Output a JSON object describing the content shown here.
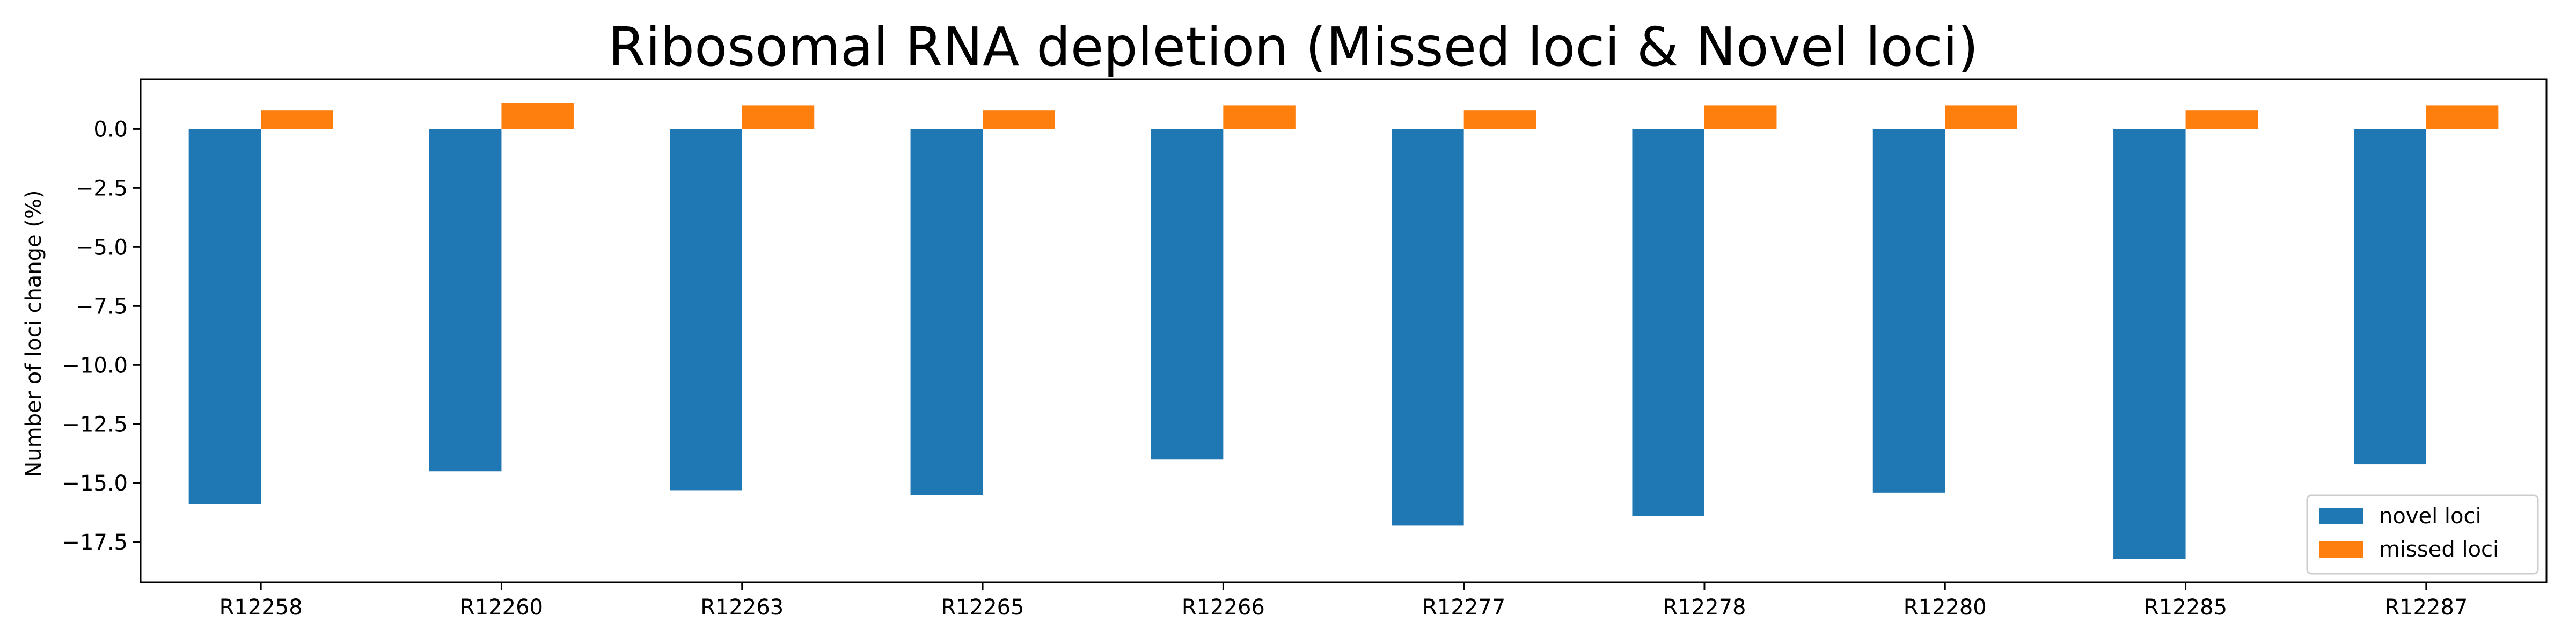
{
  "chart_data": {
    "type": "bar",
    "title": "Ribosomal RNA depletion (Missed loci & Novel loci)",
    "xlabel": "",
    "ylabel": "Number of loci change (%)",
    "categories": [
      "R12258",
      "R12260",
      "R12263",
      "R12265",
      "R12266",
      "R12277",
      "R12278",
      "R12280",
      "R12285",
      "R12287"
    ],
    "series": [
      {
        "name": "novel loci",
        "color": "#1f77b4",
        "values": [
          -15.9,
          -14.5,
          -15.3,
          -15.5,
          -14.0,
          -16.8,
          -16.4,
          -15.4,
          -18.2,
          -14.2
        ]
      },
      {
        "name": "missed loci",
        "color": "#ff7f0e",
        "values": [
          0.8,
          1.1,
          1.0,
          0.8,
          1.0,
          0.8,
          1.0,
          1.0,
          0.8,
          1.0
        ]
      }
    ],
    "yticks": [
      "0.0",
      "−2.5",
      "−5.0",
      "−7.5",
      "−10.0",
      "−12.5",
      "−15.0",
      "−17.5"
    ],
    "ylim": [
      -19.2,
      2.1
    ],
    "grid": false,
    "legend_position": "lower-right"
  }
}
